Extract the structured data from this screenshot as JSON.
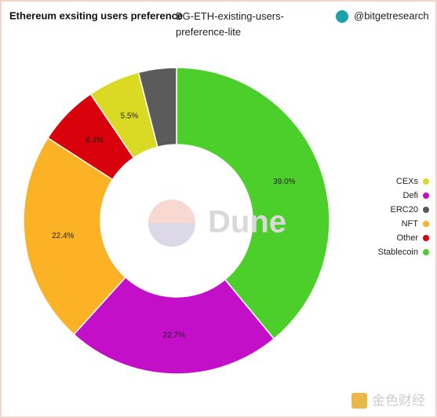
{
  "chart_data": {
    "type": "donut",
    "title": "Ethereum exsiting users preference",
    "subtitle": "BG-ETH-existing-users-preference-lite",
    "author": "@bitgetresearch",
    "watermark": "Dune",
    "source_logo": "金色财经",
    "categories": [
      "Stablecoin",
      "Defi",
      "NFT",
      "Other",
      "CEXs",
      "ERC20"
    ],
    "values": [
      39.0,
      22.7,
      22.4,
      6.4,
      5.5,
      4.0
    ],
    "value_labels": [
      "39.0%",
      "22.7%",
      "22.4%",
      "6.4%",
      "5.5%",
      null
    ],
    "colors": [
      "#4ccf2a",
      "#c30fc8",
      "#fbb224",
      "#d7000b",
      "#dada24",
      "#5b5b5b"
    ],
    "legend": "right"
  }
}
